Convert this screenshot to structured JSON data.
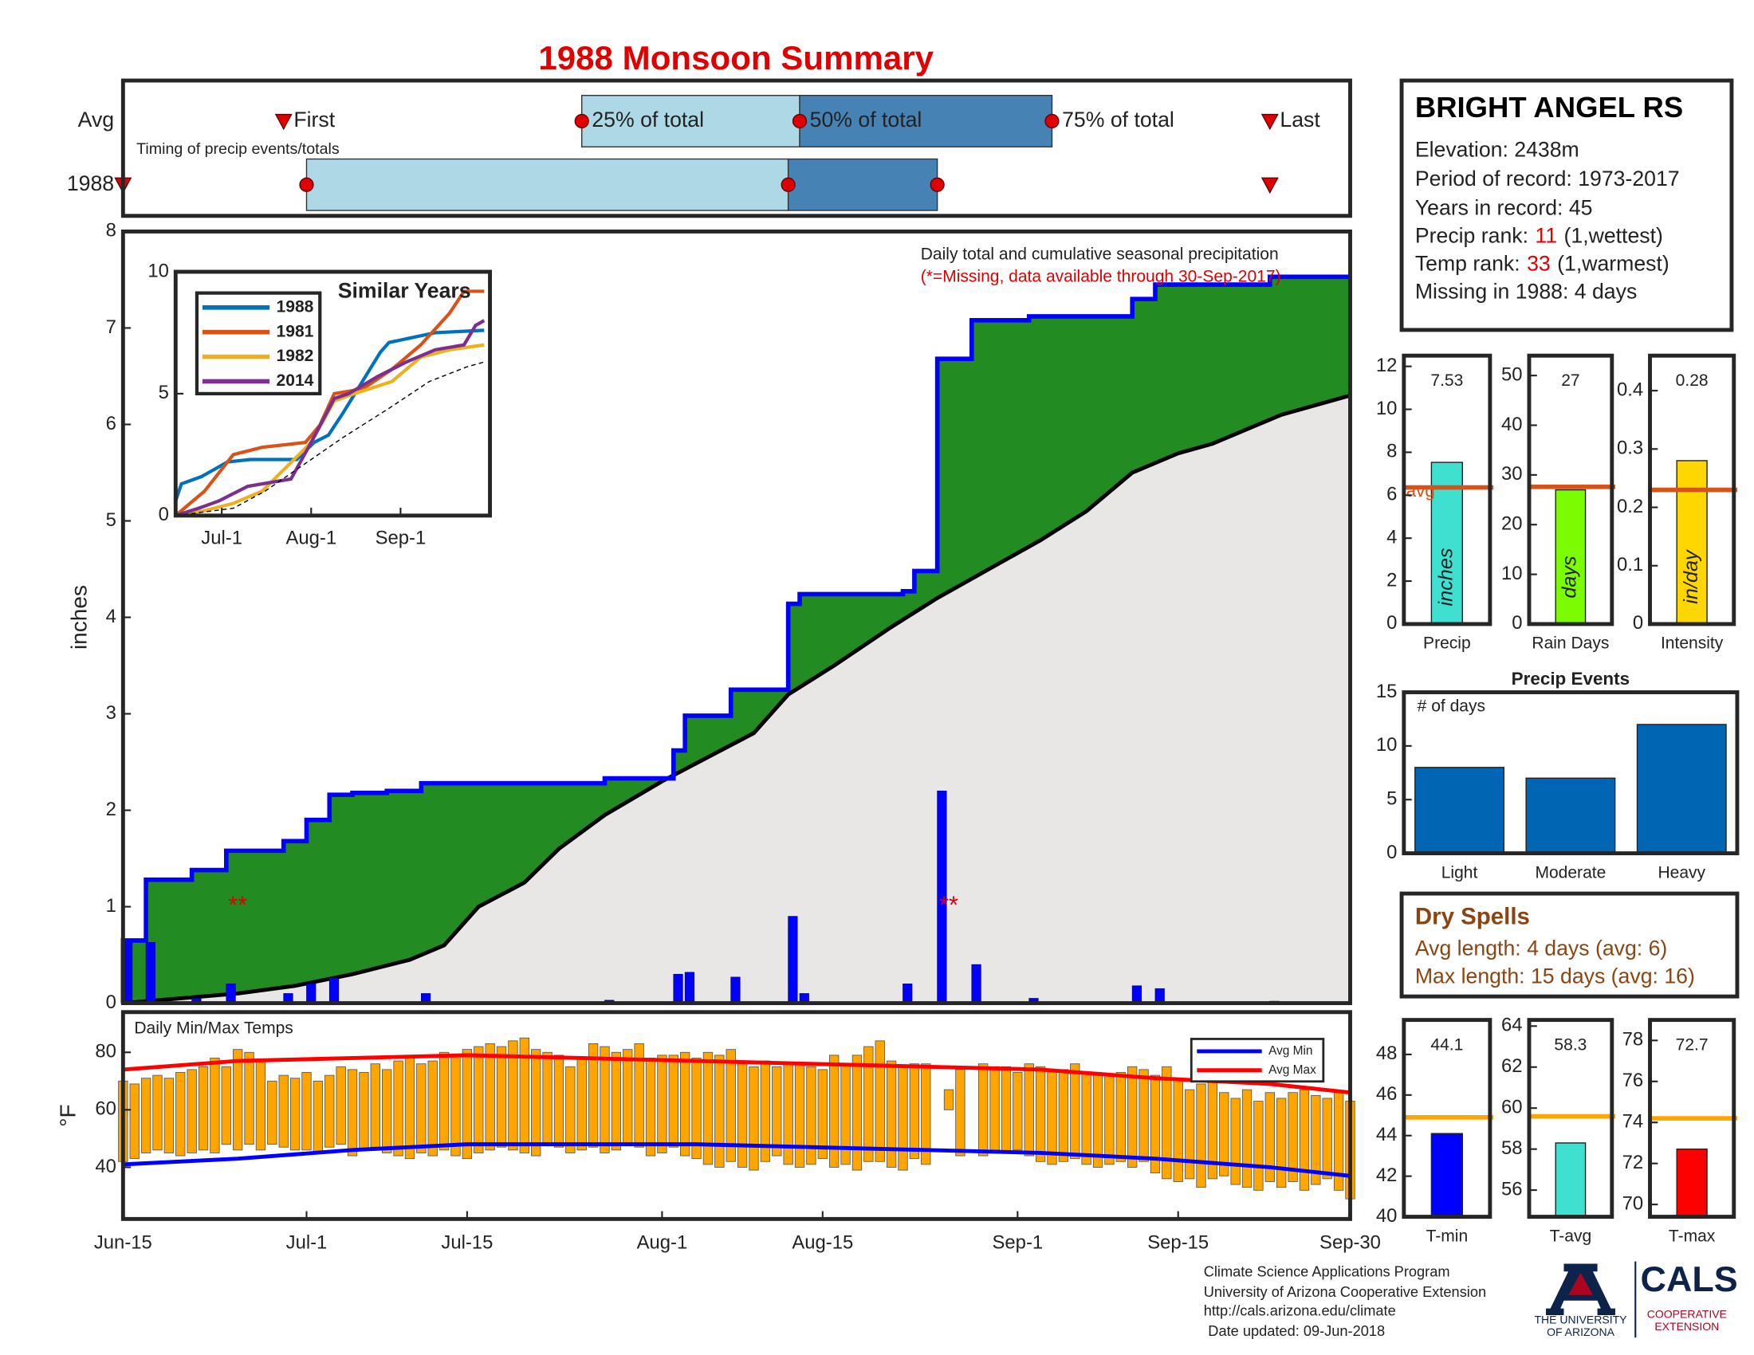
{
  "title": "1988 Monsoon Summary",
  "chart_data": [
    {
      "type": "timing",
      "subtitle": "Timing of precip events/totals",
      "xlim": [
        0,
        107
      ],
      "labels": {
        "first": "First",
        "p25": "25% of total",
        "p50": "50% of total",
        "p75": "75% of total",
        "last": "Last"
      },
      "colors": {
        "early": "#add8e6",
        "late": "#4682b4",
        "point": "#e00000"
      },
      "rows": [
        {
          "name": "Avg",
          "first": 14,
          "p25": 40,
          "p50": 59,
          "p75": 81,
          "last": 100
        },
        {
          "name": "1988",
          "first": 0,
          "p25": 16,
          "p50": 58,
          "p75": 71,
          "last": 100
        }
      ]
    },
    {
      "type": "cumulative",
      "ylabel": "inches",
      "xlim": [
        0,
        107
      ],
      "ylim": [
        0,
        8
      ],
      "yticks": [
        0,
        1,
        2,
        3,
        4,
        5,
        6,
        7,
        8
      ],
      "note": "Daily total and cumulative seasonal precipitation",
      "note_missing": "(*=Missing, data available through 30-Sep-2017)",
      "annotations": [
        {
          "text": "**",
          "x": 10,
          "y": 1
        },
        {
          "text": "**",
          "x": 72,
          "y": 1
        }
      ],
      "daily": {
        "color": "#0000ff",
        "x": [
          0,
          2,
          6,
          9,
          14,
          16,
          18,
          26,
          42,
          48,
          49,
          53,
          58,
          59,
          68,
          71,
          74,
          79,
          88,
          90,
          100
        ],
        "values": [
          0.65,
          0.63,
          0.05,
          0.2,
          0.1,
          0.2,
          0.26,
          0.1,
          0.03,
          0.3,
          0.32,
          0.27,
          0.9,
          0.1,
          0.2,
          2.2,
          0.4,
          0.05,
          0.18,
          0.15,
          0.02
        ]
      },
      "cumulative": {
        "color": "#0000ff",
        "area_color": "#228b22",
        "x": [
          0,
          0,
          2,
          2,
          6,
          6,
          9,
          9,
          14,
          14,
          16,
          16,
          18,
          18,
          20,
          20,
          23,
          23,
          26,
          26,
          42,
          42,
          48,
          48,
          49,
          49,
          53,
          53,
          58,
          58,
          59,
          59,
          68,
          68,
          69,
          69,
          71,
          71,
          74,
          74,
          79,
          79,
          88,
          88,
          90,
          90,
          100,
          100,
          107
        ],
        "values": [
          0,
          0.65,
          0.65,
          1.28,
          1.28,
          1.38,
          1.38,
          1.58,
          1.58,
          1.68,
          1.68,
          1.9,
          1.9,
          2.16,
          2.16,
          2.18,
          2.18,
          2.2,
          2.2,
          2.28,
          2.28,
          2.33,
          2.33,
          2.62,
          2.62,
          2.98,
          2.98,
          3.25,
          3.25,
          4.14,
          4.14,
          4.24,
          4.24,
          4.27,
          4.27,
          4.48,
          4.48,
          6.68,
          6.68,
          7.08,
          7.08,
          7.12,
          7.12,
          7.3,
          7.3,
          7.45,
          7.45,
          7.53,
          7.53
        ]
      },
      "average": {
        "color": "#000000",
        "area_color": "#e8e7e6",
        "x": [
          0,
          5,
          10,
          15,
          20,
          25,
          28,
          31,
          35,
          38,
          42,
          47,
          51,
          55,
          58,
          62,
          67,
          71,
          74,
          77,
          80,
          84,
          88,
          92,
          95,
          98,
          101,
          104,
          107
        ],
        "values": [
          0,
          0.05,
          0.1,
          0.18,
          0.3,
          0.45,
          0.6,
          1.0,
          1.25,
          1.6,
          1.95,
          2.3,
          2.55,
          2.8,
          3.2,
          3.5,
          3.9,
          4.2,
          4.4,
          4.6,
          4.8,
          5.1,
          5.5,
          5.7,
          5.8,
          5.95,
          6.1,
          6.2,
          6.3
        ]
      }
    },
    {
      "type": "line",
      "title": "Similar Years",
      "xlim": [
        0,
        109
      ],
      "ylim": [
        0,
        10
      ],
      "yticks": [
        0,
        5,
        10
      ],
      "xticks": [
        {
          "value": 16,
          "label": "Jul-1"
        },
        {
          "value": 47,
          "label": "Aug-1"
        },
        {
          "value": 78,
          "label": "Sep-1"
        }
      ],
      "series": [
        {
          "name": "1988",
          "color": "#0072bd",
          "x": [
            0,
            2,
            9,
            18,
            26,
            42,
            48,
            53,
            58,
            71,
            74,
            90,
            107
          ],
          "values": [
            0.6,
            1.3,
            1.6,
            2.2,
            2.3,
            2.3,
            3.0,
            3.3,
            4.2,
            6.7,
            7.1,
            7.5,
            7.6
          ]
        },
        {
          "name": "1981",
          "color": "#d95319",
          "x": [
            0,
            5,
            10,
            20,
            30,
            45,
            50,
            55,
            65,
            75,
            85,
            95,
            100,
            107
          ],
          "values": [
            0,
            0.5,
            1,
            2.5,
            2.8,
            3.0,
            3.7,
            5.0,
            5.2,
            6.0,
            7.0,
            8.3,
            9.2,
            9.2
          ]
        },
        {
          "name": "1982",
          "color": "#edb120",
          "x": [
            0,
            10,
            20,
            30,
            47,
            55,
            62,
            75,
            85,
            95,
            107
          ],
          "values": [
            0,
            0.2,
            0.5,
            1.0,
            3.0,
            4.7,
            5.0,
            5.5,
            6.5,
            6.8,
            7.0
          ]
        },
        {
          "name": "2014",
          "color": "#7e2f8e",
          "x": [
            0,
            8,
            15,
            25,
            40,
            47,
            55,
            60,
            70,
            80,
            90,
            100,
            104,
            107
          ],
          "values": [
            0,
            0.3,
            0.6,
            1.2,
            1.5,
            3.0,
            4.8,
            5.0,
            5.7,
            6.3,
            6.8,
            7.0,
            7.8,
            8.0
          ]
        },
        {
          "color": "#000000",
          "dashed": true,
          "x": [
            0,
            20,
            31,
            47,
            58,
            74,
            88,
            101,
            107
          ],
          "values": [
            0,
            0.3,
            1.0,
            2.3,
            3.2,
            4.4,
            5.5,
            6.1,
            6.3
          ]
        }
      ]
    },
    {
      "type": "range_bar",
      "title": "Daily Min/Max Temps",
      "ylabel": "°F",
      "color": "#ffa500",
      "xlim": [
        0,
        107
      ],
      "ylim": [
        22,
        94
      ],
      "yticks": [
        40,
        60,
        80
      ],
      "xticks": [
        {
          "value": 0,
          "label": "Jun-15"
        },
        {
          "value": 16,
          "label": "Jul-1"
        },
        {
          "value": 30,
          "label": "Jul-15"
        },
        {
          "value": 47,
          "label": "Aug-1"
        },
        {
          "value": 61,
          "label": "Aug-15"
        },
        {
          "value": 78,
          "label": "Sep-1"
        },
        {
          "value": 92,
          "label": "Sep-15"
        },
        {
          "value": 107,
          "label": "Sep-30"
        }
      ],
      "x": [
        0,
        1,
        2,
        3,
        4,
        5,
        6,
        7,
        8,
        9,
        10,
        11,
        12,
        13,
        14,
        15,
        16,
        17,
        18,
        19,
        20,
        21,
        22,
        23,
        24,
        25,
        26,
        27,
        28,
        29,
        30,
        31,
        32,
        33,
        34,
        35,
        36,
        37,
        38,
        39,
        40,
        41,
        42,
        43,
        44,
        45,
        46,
        47,
        48,
        49,
        50,
        51,
        52,
        53,
        54,
        55,
        56,
        57,
        58,
        59,
        60,
        61,
        62,
        63,
        64,
        65,
        66,
        67,
        68,
        69,
        70,
        71,
        72,
        73,
        74,
        75,
        76,
        77,
        78,
        79,
        80,
        81,
        82,
        83,
        84,
        85,
        86,
        87,
        88,
        89,
        90,
        91,
        92,
        93,
        94,
        95,
        96,
        97,
        98,
        99,
        100,
        101,
        102,
        103,
        104,
        105,
        106,
        107
      ],
      "max": [
        70,
        69,
        71,
        72,
        71,
        73,
        74,
        75,
        78,
        75,
        81,
        80,
        77,
        70,
        72,
        71,
        73,
        70,
        72,
        75,
        74,
        73,
        76,
        74,
        77,
        79,
        76,
        77,
        80,
        79,
        81,
        82,
        83,
        82,
        84,
        85,
        81,
        80,
        79,
        75,
        78,
        83,
        82,
        80,
        81,
        83,
        78,
        79,
        79,
        80,
        78,
        80,
        79,
        81,
        76,
        75,
        77,
        75,
        76,
        76,
        75,
        74,
        79,
        76,
        79,
        82,
        84,
        77,
        75,
        76,
        76,
        null,
        67,
        74,
        null,
        76,
        75,
        75,
        73,
        76,
        75,
        74,
        74,
        76,
        73,
        72,
        72,
        73,
        75,
        74,
        72,
        75,
        71,
        67,
        69,
        72,
        66,
        64,
        67,
        63,
        66,
        64,
        66,
        67,
        65,
        64,
        66,
        63
      ],
      "min": [
        42,
        43,
        45,
        46,
        45,
        44,
        45,
        46,
        45,
        48,
        46,
        48,
        46,
        48,
        47,
        46,
        46,
        45,
        47,
        48,
        44,
        46,
        47,
        45,
        44,
        43,
        45,
        44,
        46,
        44,
        43,
        45,
        46,
        47,
        46,
        45,
        44,
        48,
        47,
        45,
        46,
        47,
        45,
        46,
        48,
        47,
        44,
        45,
        47,
        44,
        43,
        41,
        40,
        42,
        40,
        39,
        42,
        44,
        41,
        40,
        41,
        43,
        40,
        41,
        39,
        42,
        42,
        40,
        39,
        43,
        41,
        null,
        60,
        44,
        null,
        44,
        46,
        45,
        46,
        44,
        42,
        41,
        42,
        43,
        41,
        40,
        41,
        42,
        40,
        42,
        38,
        36,
        35,
        36,
        33,
        36,
        37,
        34,
        33,
        32,
        35,
        33,
        35,
        32,
        34,
        36,
        32,
        29
      ],
      "series": [
        {
          "name": "Avg Min",
          "color": "#0000ff",
          "x": [
            0,
            10,
            20,
            30,
            40,
            50,
            60,
            70,
            80,
            90,
            100,
            107
          ],
          "values": [
            41,
            43,
            46,
            48,
            48,
            48,
            47,
            46,
            45,
            43,
            40,
            37
          ]
        },
        {
          "name": "Avg Max",
          "color": "#ff0000",
          "x": [
            0,
            10,
            20,
            30,
            40,
            50,
            60,
            70,
            80,
            90,
            100,
            107
          ],
          "values": [
            74,
            77,
            78,
            79,
            78,
            77,
            76,
            75,
            74,
            71,
            69,
            66
          ]
        }
      ]
    },
    {
      "type": "bar",
      "categories": [
        "Precip"
      ],
      "values": [
        7.53
      ],
      "color": "#40e0d0",
      "bar_label": "inches",
      "avg": 6.36,
      "avg_label": "avg",
      "avg_color": "#d95319",
      "ylim": [
        0,
        12.5
      ],
      "yticks": [
        0,
        2,
        4,
        6,
        8,
        10,
        12
      ]
    },
    {
      "type": "bar",
      "categories": [
        "Rain Days"
      ],
      "values": [
        27
      ],
      "color": "#7cfc00",
      "bar_label": "days",
      "avg": 27.6,
      "avg_color": "#d95319",
      "ylim": [
        0,
        54
      ],
      "yticks": [
        0,
        10,
        20,
        30,
        40,
        50
      ]
    },
    {
      "type": "bar",
      "categories": [
        "Intensity"
      ],
      "values": [
        0.28
      ],
      "color": "#ffd700",
      "bar_label": "in/day",
      "avg": 0.23,
      "avg_color": "#d95319",
      "ylim": [
        0,
        0.46
      ],
      "yticks": [
        0,
        0.1,
        0.2,
        0.3,
        0.4
      ]
    },
    {
      "type": "bar",
      "title": "Precip Events",
      "label": "# of days",
      "categories": [
        "Light",
        "Moderate",
        "Heavy"
      ],
      "values": [
        8,
        7,
        12
      ],
      "color": "#0066b3",
      "ylim": [
        0,
        15
      ],
      "yticks": [
        0,
        5,
        10,
        15
      ]
    },
    {
      "type": "bar",
      "categories": [
        "T-min"
      ],
      "values": [
        44.1
      ],
      "color": "#0000ff",
      "avg": 44.9,
      "avg_color": "#ffa500",
      "ylim": [
        40,
        49.7
      ],
      "yticks": [
        40,
        42,
        44,
        46,
        48
      ]
    },
    {
      "type": "bar",
      "categories": [
        "T-avg"
      ],
      "values": [
        58.3
      ],
      "color": "#40e0d0",
      "avg": 59.6,
      "avg_color": "#ffa500",
      "ylim": [
        54.7,
        64.3
      ],
      "yticks": [
        56,
        58,
        60,
        62,
        64
      ]
    },
    {
      "type": "bar",
      "categories": [
        "T-max"
      ],
      "values": [
        72.7
      ],
      "color": "#ff0000",
      "avg": 74.2,
      "avg_color": "#ffa500",
      "ylim": [
        69.4,
        79
      ],
      "yticks": [
        70,
        72,
        74,
        76,
        78
      ]
    }
  ],
  "station": {
    "name": "BRIGHT ANGEL RS",
    "lines": [
      "Elevation: 2438m",
      "Period of record: 1973-2017",
      "Years in record: 45",
      {
        "label": "Precip rank:",
        "rank": 11,
        "note": "(1,wettest)"
      },
      {
        "label": "Temp rank:",
        "rank": 33,
        "note": "(1,warmest)"
      },
      "Missing in 1988: 4 days"
    ]
  },
  "dry_spells": {
    "title": "Dry Spells",
    "lines": [
      "Avg length: 4 days (avg: 6)",
      "Max length: 15 days (avg: 16)"
    ]
  },
  "footer": [
    "Climate Science Applications Program",
    "University of Arizona Cooperative Extension",
    "http://cals.arizona.edu/climate",
    "Date updated: 09-Jun-2018"
  ],
  "logo": {
    "university": [
      "THE UNIVERSITY",
      "OF ARIZONA"
    ],
    "cals": "CALS",
    "extension": [
      "COOPERATIVE",
      "EXTENSION"
    ]
  }
}
